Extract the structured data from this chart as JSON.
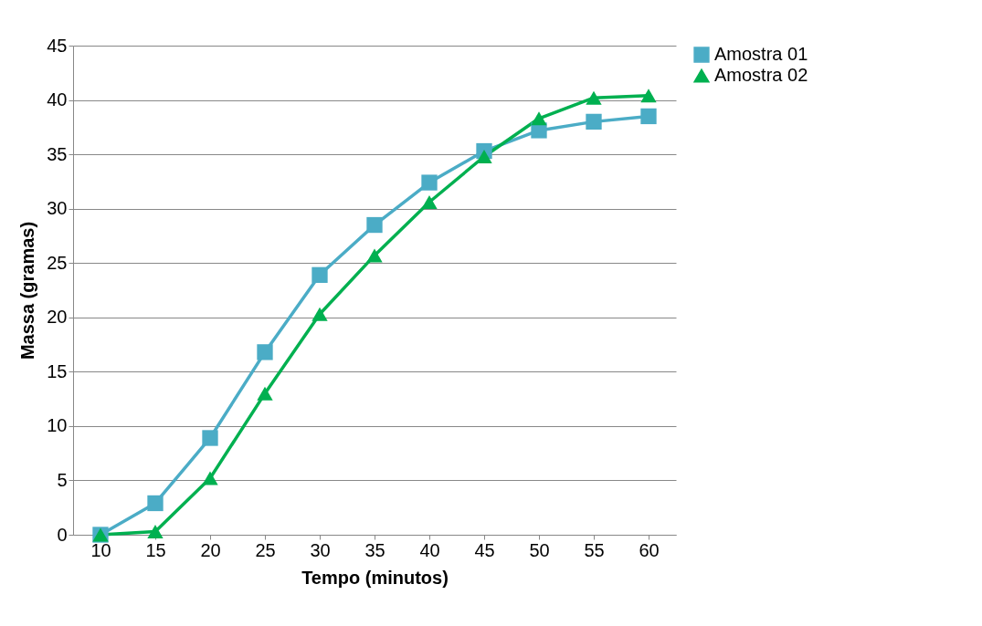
{
  "chart_data": {
    "type": "line",
    "xlabel": "Tempo (minutos)",
    "ylabel": "Massa (gramas)",
    "categories": [
      "10",
      "15",
      "20",
      "25",
      "30",
      "35",
      "40",
      "45",
      "50",
      "55",
      "60"
    ],
    "series": [
      {
        "name": "Amostra 01",
        "color": "#4bacc6",
        "marker": "square",
        "values": [
          0,
          2.9,
          8.9,
          16.8,
          23.9,
          28.5,
          32.4,
          35.3,
          37.2,
          38.0,
          38.5
        ]
      },
      {
        "name": "Amostra 02",
        "color": "#00b050",
        "marker": "triangle",
        "values": [
          0,
          0.3,
          5.2,
          13.0,
          20.3,
          25.7,
          30.6,
          34.8,
          38.3,
          40.2,
          40.4
        ]
      }
    ],
    "ylim": [
      0,
      45
    ],
    "yticks": [
      0,
      5,
      10,
      15,
      20,
      25,
      30,
      35,
      40,
      45
    ],
    "grid": "y",
    "legend": "right",
    "line_style": "solid"
  }
}
